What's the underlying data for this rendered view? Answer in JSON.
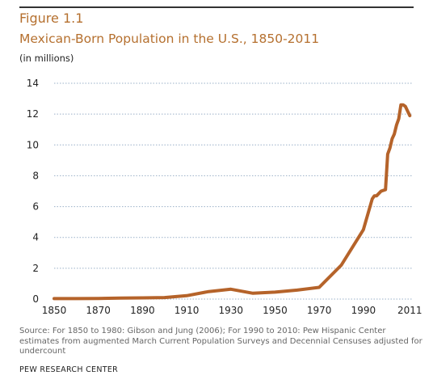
{
  "figure_label": "Figure 1.1",
  "title": "Mexican-Born Population in the U.S., 1850-2011",
  "units_note": "(in millions)",
  "source": "Source: For 1850 to 1980: Gibson and Jung (2006); For 1990 to 2010: Pew Hispanic Center estimates from augmented March Current Population Surveys and Decennial Censuses adjusted for undercount",
  "credit": "PEW RESEARCH CENTER",
  "colors": {
    "accent": "#b5702f",
    "line": "#b5632a",
    "grid": "#9ab0c8"
  },
  "chart_data": {
    "type": "line",
    "title": "Mexican-Born Population in the U.S., 1850-2011",
    "xlabel": "",
    "ylabel": "(in millions)",
    "xlim": [
      1850,
      2012
    ],
    "ylim": [
      0,
      14
    ],
    "x_ticks": [
      "1850",
      "1870",
      "1890",
      "1910",
      "1930",
      "1950",
      "1970",
      "1990",
      "2011"
    ],
    "x_tick_values": [
      1850,
      1870,
      1890,
      1910,
      1930,
      1950,
      1970,
      1990,
      2011
    ],
    "y_ticks": [
      "0",
      "2",
      "4",
      "6",
      "8",
      "10",
      "12",
      "14"
    ],
    "y_tick_values": [
      0,
      2,
      4,
      6,
      8,
      10,
      12,
      14
    ],
    "grid": true,
    "grid_style": "dotted horizontal",
    "series": [
      {
        "color": "#b5632a",
        "x": [
          1850,
          1860,
          1870,
          1880,
          1890,
          1900,
          1910,
          1920,
          1930,
          1940,
          1950,
          1960,
          1970,
          1980,
          1990,
          1994,
          1995,
          1996,
          1998,
          2000,
          2001,
          2002,
          2003,
          2004,
          2005,
          2006,
          2007,
          2008,
          2009,
          2010,
          2011
        ],
        "y": [
          0.03,
          0.03,
          0.04,
          0.07,
          0.08,
          0.1,
          0.22,
          0.49,
          0.64,
          0.38,
          0.45,
          0.58,
          0.76,
          2.2,
          4.5,
          6.5,
          6.7,
          6.7,
          7.0,
          7.1,
          9.4,
          9.8,
          10.4,
          10.7,
          11.3,
          11.7,
          12.6,
          12.6,
          12.5,
          12.2,
          11.9
        ]
      }
    ]
  }
}
